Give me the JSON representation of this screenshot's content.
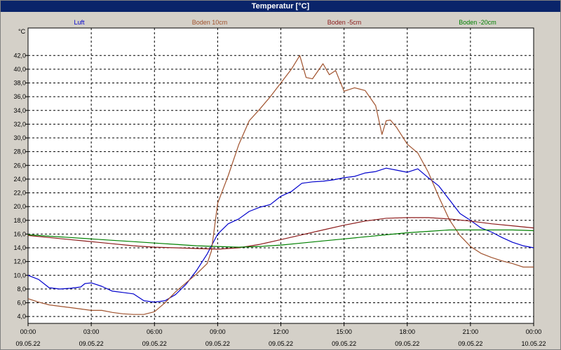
{
  "window": {
    "title": "Temperatur [°C]"
  },
  "chart_data": {
    "type": "line",
    "title": "Temperatur [°C]",
    "ylabel": "°C",
    "xlabel": "",
    "ylim": [
      3.0,
      46.0
    ],
    "xlim": [
      0,
      24
    ],
    "grid": true,
    "legend_position": "top",
    "y_ticks": [
      "4,0",
      "6,0",
      "8,0",
      "10,0",
      "12,0",
      "14,0",
      "16,0",
      "18,0",
      "20,0",
      "22,0",
      "24,0",
      "26,0",
      "28,0",
      "30,0",
      "32,0",
      "34,0",
      "36,0",
      "38,0",
      "40,0",
      "42,0"
    ],
    "x_ticks": [
      {
        "time": "00:00",
        "date": "09.05.22"
      },
      {
        "time": "03:00",
        "date": "09.05.22"
      },
      {
        "time": "06:00",
        "date": "09.05.22"
      },
      {
        "time": "09:00",
        "date": "09.05.22"
      },
      {
        "time": "12:00",
        "date": "09.05.22"
      },
      {
        "time": "15:00",
        "date": "09.05.22"
      },
      {
        "time": "18:00",
        "date": "09.05.22"
      },
      {
        "time": "21:00",
        "date": "09.05.22"
      },
      {
        "time": "00:00",
        "date": "10.05.22"
      }
    ],
    "series": [
      {
        "name": "Luft",
        "color": "#0000cc",
        "x": [
          0,
          0.5,
          1,
          1.5,
          2,
          2.5,
          2.7,
          3,
          3.5,
          4,
          4.5,
          5,
          5.5,
          6,
          6.5,
          7,
          7.5,
          8,
          8.5,
          9,
          9.5,
          10,
          10.5,
          11,
          11.5,
          12,
          12.5,
          13,
          13.5,
          14,
          14.5,
          15,
          15.5,
          16,
          16.5,
          17,
          17.5,
          18,
          18.5,
          19,
          19.5,
          20,
          20.5,
          21,
          21.5,
          22,
          22.5,
          23,
          23.5,
          24
        ],
        "y": [
          10.0,
          9.4,
          8.2,
          8.0,
          8.1,
          8.3,
          8.8,
          8.9,
          8.4,
          7.7,
          7.5,
          7.3,
          6.3,
          6.1,
          6.3,
          7.2,
          8.7,
          10.7,
          13.1,
          16.0,
          17.5,
          18.2,
          19.3,
          19.9,
          20.3,
          21.5,
          22.2,
          23.4,
          23.6,
          23.7,
          23.9,
          24.2,
          24.4,
          24.9,
          25.1,
          25.6,
          25.3,
          25.0,
          25.5,
          24.2,
          23.0,
          21.0,
          19.0,
          18.0,
          16.9,
          16.3,
          15.5,
          14.8,
          14.3,
          14.0
        ]
      },
      {
        "name": "Boden 10cm",
        "color": "#a0522d",
        "x": [
          0,
          0.5,
          1,
          1.5,
          2,
          2.5,
          3,
          3.5,
          4,
          4.5,
          5,
          5.5,
          6,
          6.5,
          7,
          7.5,
          8,
          8.5,
          8.7,
          9,
          9.5,
          10,
          10.5,
          11,
          11.5,
          12,
          12.5,
          12.9,
          13.2,
          13.5,
          14,
          14.3,
          14.6,
          15,
          15.5,
          16,
          16.5,
          16.8,
          17,
          17.2,
          17.5,
          18,
          18.5,
          19,
          19.5,
          20,
          20.5,
          21,
          21.5,
          22,
          22.5,
          23,
          23.5,
          24
        ],
        "y": [
          6.6,
          6.1,
          5.7,
          5.5,
          5.3,
          5.1,
          4.9,
          4.9,
          4.6,
          4.4,
          4.3,
          4.3,
          4.7,
          6.0,
          7.6,
          8.9,
          10.2,
          11.7,
          13.5,
          20.5,
          24.5,
          29.0,
          32.5,
          34.2,
          36.0,
          38.0,
          40.0,
          42.0,
          38.8,
          38.6,
          40.8,
          39.2,
          39.8,
          36.8,
          37.3,
          36.9,
          34.7,
          30.5,
          32.5,
          32.6,
          31.5,
          29.1,
          27.8,
          25.0,
          21.4,
          18.1,
          15.8,
          14.2,
          13.2,
          12.6,
          12.1,
          11.7,
          11.2,
          11.2
        ]
      },
      {
        "name": "Boden -5cm",
        "color": "#8b1a1a",
        "x": [
          0,
          1,
          2,
          3,
          4,
          5,
          6,
          7,
          8,
          9,
          10,
          11,
          12,
          13,
          14,
          15,
          16,
          17,
          18,
          19,
          20,
          21,
          22,
          23,
          24
        ],
        "y": [
          15.8,
          15.5,
          15.2,
          14.9,
          14.6,
          14.3,
          14.1,
          14.0,
          13.9,
          13.8,
          14.0,
          14.5,
          15.2,
          15.9,
          16.6,
          17.3,
          17.9,
          18.3,
          18.4,
          18.4,
          18.2,
          17.9,
          17.5,
          17.2,
          16.9
        ]
      },
      {
        "name": "Boden -20cm",
        "color": "#008000",
        "x": [
          0,
          1,
          2,
          3,
          4,
          5,
          6,
          7,
          8,
          9,
          10,
          11,
          12,
          13,
          14,
          15,
          16,
          17,
          18,
          19,
          20,
          21,
          22,
          23,
          24
        ],
        "y": [
          15.9,
          15.7,
          15.5,
          15.3,
          15.1,
          14.9,
          14.7,
          14.5,
          14.3,
          14.2,
          14.1,
          14.2,
          14.4,
          14.7,
          15.0,
          15.3,
          15.6,
          15.9,
          16.2,
          16.4,
          16.6,
          16.6,
          16.6,
          16.6,
          16.5
        ]
      }
    ]
  }
}
